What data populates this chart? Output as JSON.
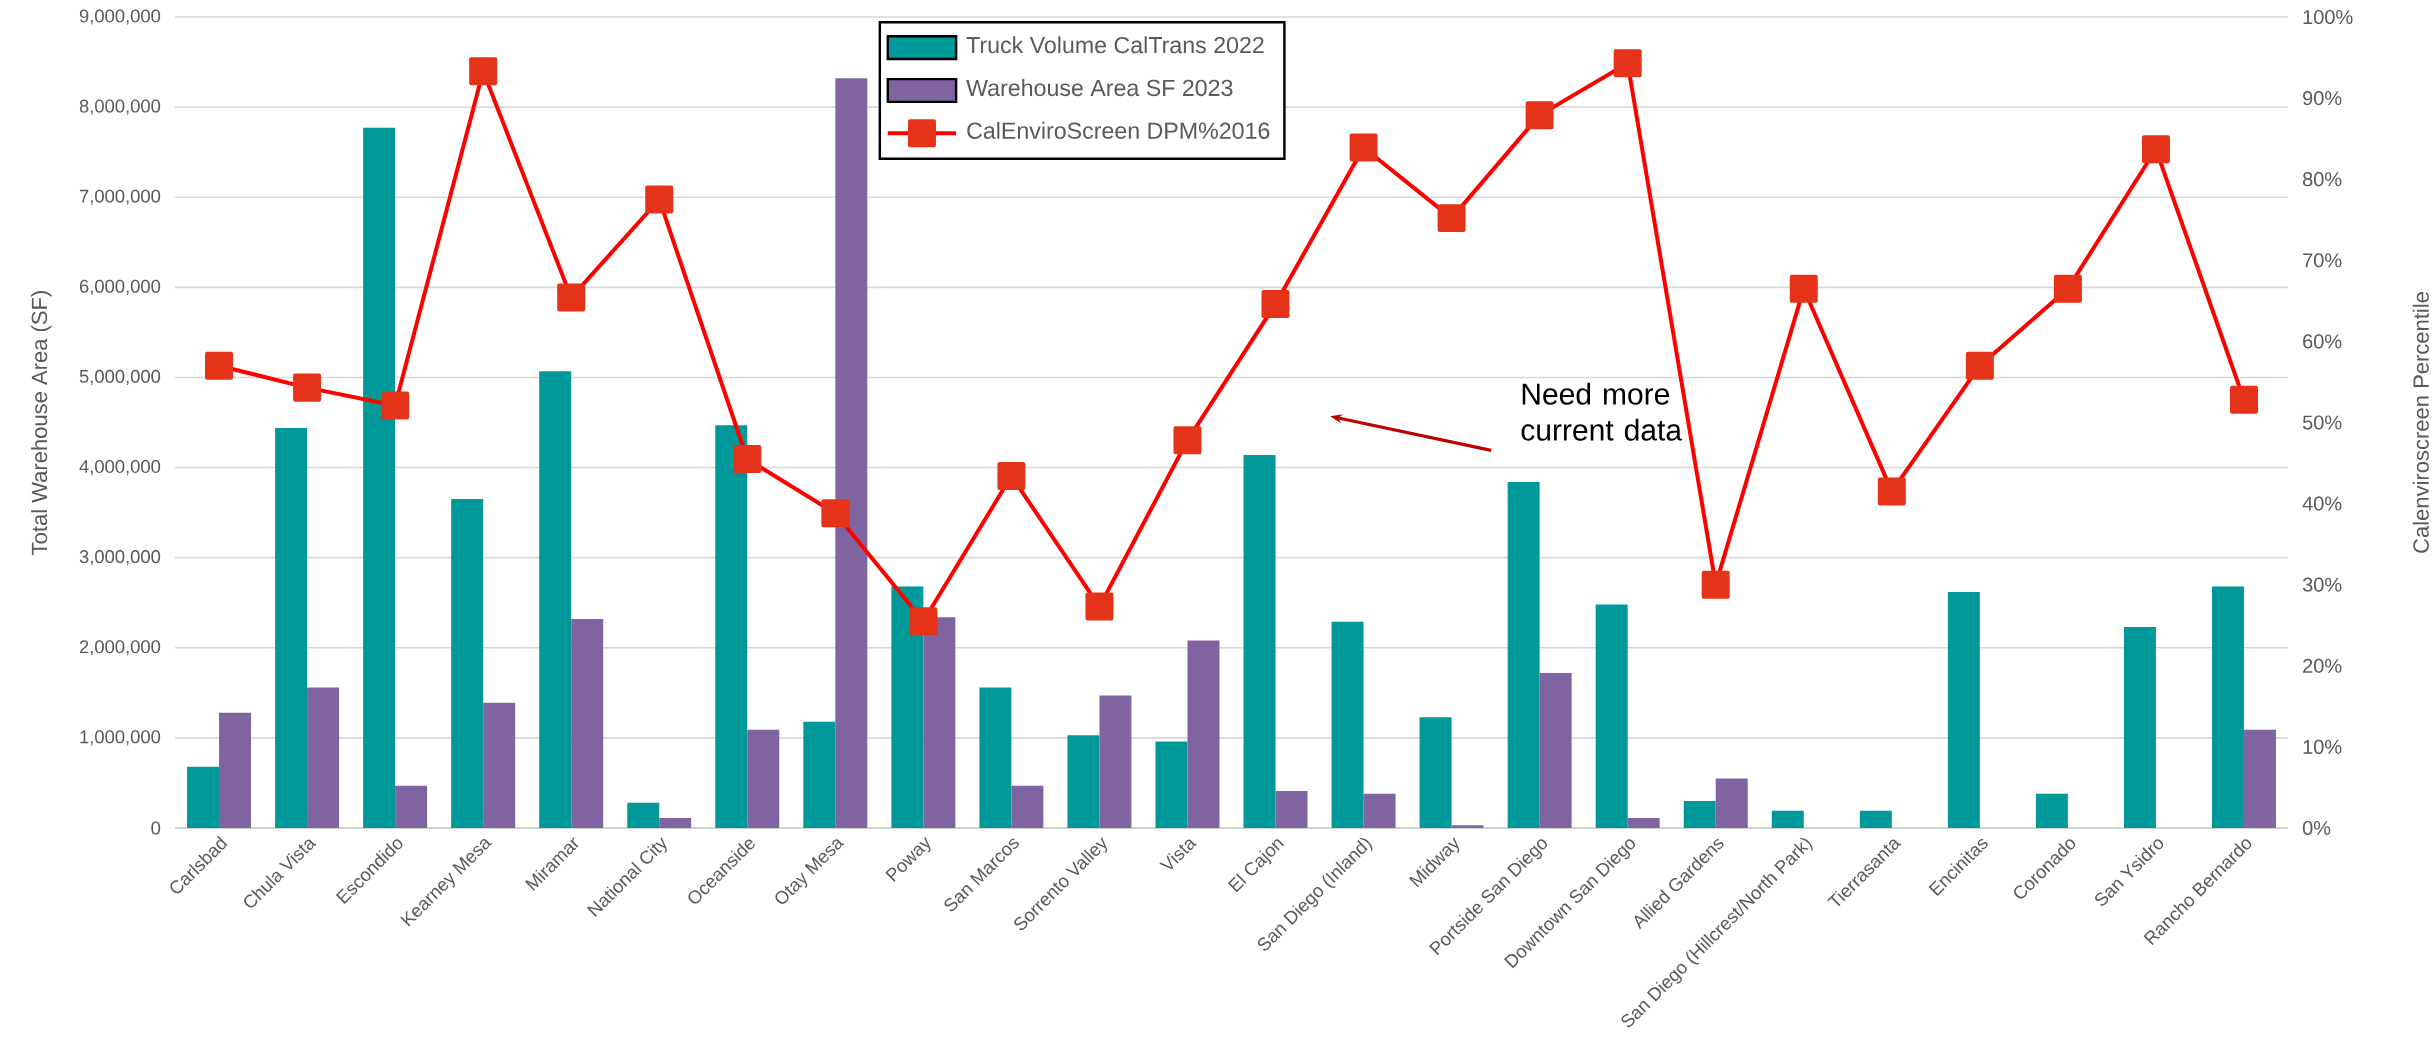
{
  "chart_data": {
    "type": "bar",
    "categories": [
      "Carlsbad",
      "Chula Vista",
      "Escondido",
      "Kearney Mesa",
      "Miramar",
      "National City",
      "Oceanside",
      "Otay Mesa",
      "Poway",
      "San Marcos",
      "Sorrento Valley",
      "Vista",
      "El Cajon",
      "San Diego (Inland)",
      "Midway",
      "Portside San Diego",
      "Downtown San Diego",
      "Allied Gardens",
      "San Diego (Hillcrest/North Park)",
      "Tierrasanta",
      "Encinitas",
      "Coronado",
      "San Ysidro",
      "Rancho Bernardo"
    ],
    "series": [
      {
        "name": "Truck Volume CalTrans 2022",
        "color": "#009999",
        "values": [
          680000,
          4440000,
          7770000,
          3650000,
          5070000,
          280000,
          4470000,
          1180000,
          2680000,
          1560000,
          1030000,
          960000,
          4140000,
          2290000,
          1230000,
          3840000,
          2480000,
          300000,
          190000,
          190000,
          2620000,
          380000,
          2230000,
          2680000
        ]
      },
      {
        "name": "Warehouse Area SF 2023",
        "color": "#8064a2",
        "values": [
          1280000,
          1560000,
          470000,
          1390000,
          2320000,
          110000,
          1090000,
          8320000,
          2340000,
          470000,
          1470000,
          2080000,
          410000,
          380000,
          30000,
          1720000,
          110000,
          550000,
          null,
          null,
          null,
          null,
          null,
          1090000
        ]
      },
      {
        "name": "CalEnviroScreen DPM%2016",
        "type": "line",
        "axis": "y2",
        "color": "#ff0000",
        "marker": "square",
        "values": [
          57,
          54.3,
          52.1,
          93.3,
          65.4,
          77.5,
          45.5,
          38.8,
          25.5,
          43.4,
          27.3,
          47.8,
          64.6,
          83.9,
          75.2,
          87.9,
          94.3,
          30,
          66.5,
          41.5,
          57,
          66.5,
          83.7,
          52.8
        ]
      }
    ],
    "ylabel": "Total Warehouse Area (SF)",
    "y2label": "Calenviroscreen Percentile",
    "ylim": [
      0,
      9000000
    ],
    "yticks": [
      {
        "value": 0,
        "label": "0"
      },
      {
        "value": 1000000,
        "label": "1,000,000"
      },
      {
        "value": 2000000,
        "label": "2,000,000"
      },
      {
        "value": 3000000,
        "label": "3,000,000"
      },
      {
        "value": 4000000,
        "label": "4,000,000"
      },
      {
        "value": 5000000,
        "label": "5,000,000"
      },
      {
        "value": 6000000,
        "label": "6,000,000"
      },
      {
        "value": 7000000,
        "label": "7,000,000"
      },
      {
        "value": 8000000,
        "label": "8,000,000"
      },
      {
        "value": 9000000,
        "label": "9,000,000"
      }
    ],
    "y2lim": [
      0,
      100
    ],
    "y2ticks": [
      {
        "value": 0,
        "label": "0%"
      },
      {
        "value": 10,
        "label": "10%"
      },
      {
        "value": 20,
        "label": "20%"
      },
      {
        "value": 30,
        "label": "30%"
      },
      {
        "value": 40,
        "label": "40%"
      },
      {
        "value": 50,
        "label": "50%"
      },
      {
        "value": 60,
        "label": "60%"
      },
      {
        "value": 70,
        "label": "70%"
      },
      {
        "value": 80,
        "label": "80%"
      },
      {
        "value": 90,
        "label": "90%"
      },
      {
        "value": 100,
        "label": "100%"
      }
    ],
    "grid": "y",
    "legend": "top",
    "annotations": [
      "Need more current data"
    ]
  }
}
